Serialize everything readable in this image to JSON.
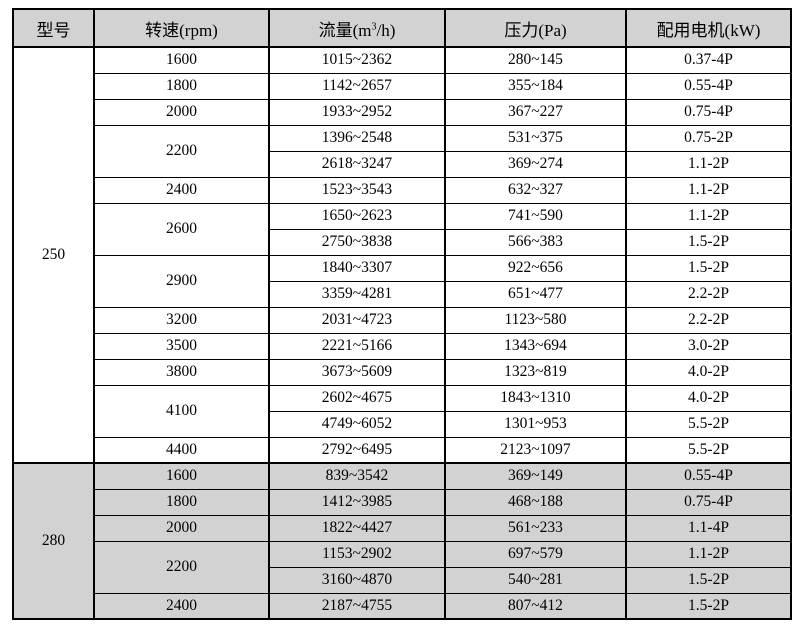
{
  "colors": {
    "header_bg": "#d2d2d2",
    "section_250_bg": "#ffffff",
    "section_280_bg": "#d2d2d2",
    "border": "#000000",
    "page_bg": "#ffffff"
  },
  "table": {
    "headers": {
      "model": "型号",
      "speed": "转速(rpm)",
      "flow_pre": "流量(m",
      "flow_sup": "3",
      "flow_post": "/h)",
      "pressure": "压力(Pa)",
      "motor": "配用电机(kW)"
    },
    "sections": [
      {
        "model": "250",
        "bg": "#ffffff",
        "rows": [
          {
            "speed": "1600",
            "flow": "1015~2362",
            "pressure": "280~145",
            "motor": "0.37-4P"
          },
          {
            "speed": "1800",
            "flow": "1142~2657",
            "pressure": "355~184",
            "motor": "0.55-4P"
          },
          {
            "speed": "2000",
            "flow": "1933~2952",
            "pressure": "367~227",
            "motor": "0.75-4P"
          },
          {
            "speed": "2200",
            "speed_rowspan": 2,
            "flow": "1396~2548",
            "pressure": "531~375",
            "motor": "0.75-2P"
          },
          {
            "flow": "2618~3247",
            "pressure": "369~274",
            "motor": "1.1-2P"
          },
          {
            "speed": "2400",
            "flow": "1523~3543",
            "pressure": "632~327",
            "motor": "1.1-2P"
          },
          {
            "speed": "2600",
            "speed_rowspan": 2,
            "flow": "1650~2623",
            "pressure": "741~590",
            "motor": "1.1-2P"
          },
          {
            "flow": "2750~3838",
            "pressure": "566~383",
            "motor": "1.5-2P"
          },
          {
            "speed": "2900",
            "speed_rowspan": 2,
            "flow": "1840~3307",
            "pressure": "922~656",
            "motor": "1.5-2P"
          },
          {
            "flow": "3359~4281",
            "pressure": "651~477",
            "motor": "2.2-2P"
          },
          {
            "speed": "3200",
            "flow": "2031~4723",
            "pressure": "1123~580",
            "motor": "2.2-2P"
          },
          {
            "speed": "3500",
            "flow": "2221~5166",
            "pressure": "1343~694",
            "motor": "3.0-2P"
          },
          {
            "speed": "3800",
            "flow": "3673~5609",
            "pressure": "1323~819",
            "motor": "4.0-2P"
          },
          {
            "speed": "4100",
            "speed_rowspan": 2,
            "flow": "2602~4675",
            "pressure": "1843~1310",
            "motor": "4.0-2P"
          },
          {
            "flow": "4749~6052",
            "pressure": "1301~953",
            "motor": "5.5-2P"
          },
          {
            "speed": "4400",
            "flow": "2792~6495",
            "pressure": "2123~1097",
            "motor": "5.5-2P"
          }
        ]
      },
      {
        "model": "280",
        "bg": "#d2d2d2",
        "rows": [
          {
            "speed": "1600",
            "flow": "839~3542",
            "pressure": "369~149",
            "motor": "0.55-4P"
          },
          {
            "speed": "1800",
            "flow": "1412~3985",
            "pressure": "468~188",
            "motor": "0.75-4P"
          },
          {
            "speed": "2000",
            "flow": "1822~4427",
            "pressure": "561~233",
            "motor": "1.1-4P"
          },
          {
            "speed": "2200",
            "speed_rowspan": 2,
            "flow": "1153~2902",
            "pressure": "697~579",
            "motor": "1.1-2P"
          },
          {
            "flow": "3160~4870",
            "pressure": "540~281",
            "motor": "1.5-2P"
          },
          {
            "speed": "2400",
            "flow": "2187~4755",
            "pressure": "807~412",
            "motor": "1.5-2P"
          }
        ]
      }
    ]
  }
}
